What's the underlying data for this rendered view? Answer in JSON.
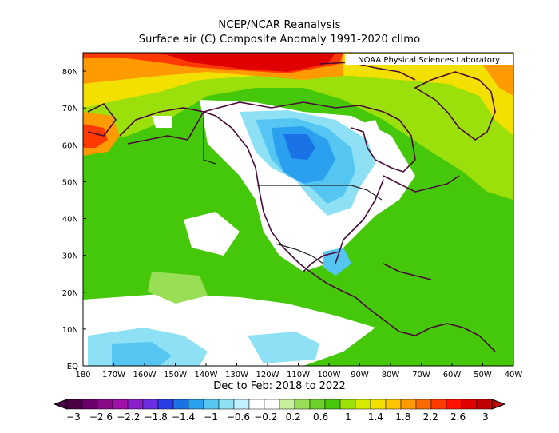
{
  "header": {
    "title": "NCEP/NCAR Reanalysis",
    "subtitle": "Surface air (C) Composite Anomaly 1991-2020 climo",
    "credit": "NOAA Physical Sciences Laboratory"
  },
  "map": {
    "lat_labels": [
      "80N",
      "70N",
      "60N",
      "50N",
      "40N",
      "30N",
      "20N",
      "10N",
      "EQ"
    ],
    "lon_labels": [
      "180",
      "170W",
      "160W",
      "150W",
      "140W",
      "130W",
      "120W",
      "110W",
      "100W",
      "90W",
      "80W",
      "70W",
      "60W",
      "50W",
      "40W"
    ],
    "period_label": "Dec to Feb: 2018 to 2022"
  },
  "colorbar": {
    "labels": [
      "-3",
      "-2.6",
      "-2.2",
      "-1.8",
      "-1.4",
      "-1",
      "-0.6",
      "-0.2",
      "0.2",
      "0.6",
      "1",
      "1.4",
      "1.8",
      "2.2",
      "2.6",
      "3"
    ],
    "colors": [
      "#4a0044",
      "#6b006b",
      "#8a0a8a",
      "#a010a8",
      "#8a1fc9",
      "#6b2ee0",
      "#2b3ee6",
      "#1a73e6",
      "#2aa0ee",
      "#55c6f2",
      "#8ee0f5",
      "#bff0fb",
      "#ffffff",
      "#ffffff",
      "#c7ee9a",
      "#99df55",
      "#6bd02a",
      "#45c80a",
      "#9be00a",
      "#d6ea00",
      "#f2e100",
      "#ffc400",
      "#ff9a00",
      "#ff6a00",
      "#ff3a00",
      "#ff1000",
      "#e00000",
      "#c00000"
    ]
  },
  "anomaly_colors": {
    "warm_strong": "#e00000",
    "warm": "#ff9a00",
    "warm_light": "#f2e100",
    "yellow_green": "#9be00a",
    "green": "#45c80a",
    "light_green": "#99df55",
    "neutral": "#ffffff",
    "cool_light": "#55c6f2",
    "cool": "#2aa0ee",
    "cool_strong": "#1a73e6"
  }
}
